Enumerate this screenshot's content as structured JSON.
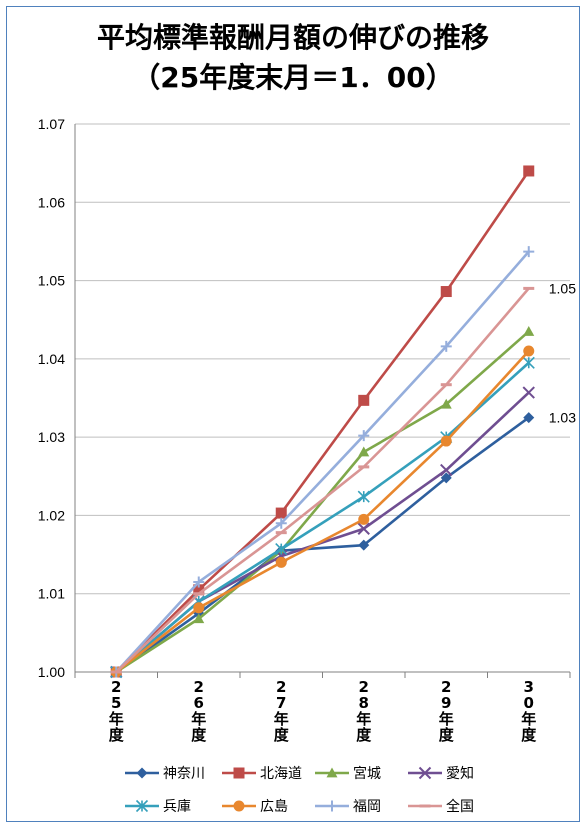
{
  "chart_data": {
    "type": "line",
    "title_line1": "平均標準報酬月額の伸びの推移",
    "title_line2": "（25年度末月＝1．00）",
    "categories": [
      [
        "2",
        "5",
        "年",
        "度"
      ],
      [
        "2",
        "6",
        "年",
        "度"
      ],
      [
        "2",
        "7",
        "年",
        "度"
      ],
      [
        "2",
        "8",
        "年",
        "度"
      ],
      [
        "2",
        "9",
        "年",
        "度"
      ],
      [
        "3",
        "0",
        "年",
        "度"
      ]
    ],
    "ylim": [
      1.0,
      1.07
    ],
    "yticks": [
      "1.00",
      "1.01",
      "1.02",
      "1.03",
      "1.04",
      "1.05",
      "1.06",
      "1.07"
    ],
    "grid": "horizontal",
    "legend_position": "bottom",
    "series": [
      {
        "name": "神奈川",
        "color": "#2e5f9e",
        "marker": "diamond",
        "values": [
          1.0,
          1.0075,
          1.0155,
          1.0162,
          1.0248,
          1.0325
        ]
      },
      {
        "name": "北海道",
        "color": "#be4b48",
        "marker": "square",
        "values": [
          1.0,
          1.0105,
          1.0203,
          1.0347,
          1.0486,
          1.064
        ]
      },
      {
        "name": "宮城",
        "color": "#7fa84a",
        "marker": "triangle",
        "values": [
          1.0,
          1.0068,
          1.0155,
          1.0281,
          1.0342,
          1.0435
        ]
      },
      {
        "name": "愛知",
        "color": "#6f4e91",
        "marker": "x",
        "values": [
          1.0,
          1.009,
          1.0148,
          1.0183,
          1.0258,
          1.0357
        ]
      },
      {
        "name": "兵庫",
        "color": "#35a0bb",
        "marker": "star",
        "values": [
          1.0,
          1.009,
          1.0157,
          1.0224,
          1.03,
          1.0395
        ]
      },
      {
        "name": "広島",
        "color": "#e8872e",
        "marker": "circle",
        "values": [
          1.0,
          1.0082,
          1.014,
          1.0195,
          1.0295,
          1.041
        ]
      },
      {
        "name": "福岡",
        "color": "#95aedc",
        "marker": "plus",
        "values": [
          1.0,
          1.0115,
          1.019,
          1.0302,
          1.0416,
          1.0537
        ]
      },
      {
        "name": "全国",
        "color": "#d99594",
        "marker": "dash",
        "values": [
          1.0,
          1.01,
          1.0178,
          1.0262,
          1.0367,
          1.049
        ]
      }
    ],
    "data_labels": [
      {
        "series_index": 7,
        "point_index": 5,
        "text": "1.05"
      },
      {
        "series_index": 0,
        "point_index": 5,
        "text": "1.03"
      }
    ]
  }
}
